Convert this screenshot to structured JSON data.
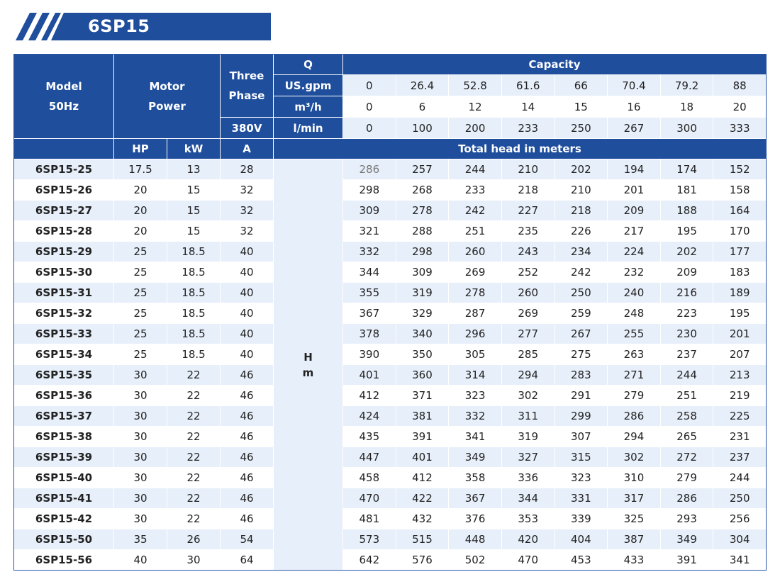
{
  "title": "6SP15",
  "colors": {
    "header_blue": "#1f4e9c",
    "stripe": "#e7effa"
  },
  "header": {
    "model": [
      "Model",
      "50Hz"
    ],
    "motor_power": [
      "Motor",
      "Power"
    ],
    "three_phase": [
      "Three",
      "Phase"
    ],
    "voltage": "380V",
    "q": "Q",
    "capacity": "Capacity",
    "units": [
      "US.gpm",
      "m³/h",
      "l/min"
    ],
    "hp": "HP",
    "kw": "kW",
    "a": "A",
    "total_head": "Total head in meters",
    "hm": [
      "H",
      "m"
    ]
  },
  "capacity": {
    "us_gpm": [
      "0",
      "26.4",
      "52.8",
      "61.6",
      "66",
      "70.4",
      "79.2",
      "88"
    ],
    "m3h": [
      "0",
      "6",
      "12",
      "14",
      "15",
      "16",
      "18",
      "20"
    ],
    "lmin": [
      "0",
      "100",
      "200",
      "233",
      "250",
      "267",
      "300",
      "333"
    ]
  },
  "rows": [
    {
      "model": "6SP15-25",
      "hp": "17.5",
      "kw": "13",
      "a": "28",
      "head": [
        "286",
        "257",
        "244",
        "210",
        "202",
        "194",
        "174",
        "152"
      ]
    },
    {
      "model": "6SP15-26",
      "hp": "20",
      "kw": "15",
      "a": "32",
      "head": [
        "298",
        "268",
        "233",
        "218",
        "210",
        "201",
        "181",
        "158"
      ]
    },
    {
      "model": "6SP15-27",
      "hp": "20",
      "kw": "15",
      "a": "32",
      "head": [
        "309",
        "278",
        "242",
        "227",
        "218",
        "209",
        "188",
        "164"
      ]
    },
    {
      "model": "6SP15-28",
      "hp": "20",
      "kw": "15",
      "a": "32",
      "head": [
        "321",
        "288",
        "251",
        "235",
        "226",
        "217",
        "195",
        "170"
      ]
    },
    {
      "model": "6SP15-29",
      "hp": "25",
      "kw": "18.5",
      "a": "40",
      "head": [
        "332",
        "298",
        "260",
        "243",
        "234",
        "224",
        "202",
        "177"
      ]
    },
    {
      "model": "6SP15-30",
      "hp": "25",
      "kw": "18.5",
      "a": "40",
      "head": [
        "344",
        "309",
        "269",
        "252",
        "242",
        "232",
        "209",
        "183"
      ]
    },
    {
      "model": "6SP15-31",
      "hp": "25",
      "kw": "18.5",
      "a": "40",
      "head": [
        "355",
        "319",
        "278",
        "260",
        "250",
        "240",
        "216",
        "189"
      ]
    },
    {
      "model": "6SP15-32",
      "hp": "25",
      "kw": "18.5",
      "a": "40",
      "head": [
        "367",
        "329",
        "287",
        "269",
        "259",
        "248",
        "223",
        "195"
      ]
    },
    {
      "model": "6SP15-33",
      "hp": "25",
      "kw": "18.5",
      "a": "40",
      "head": [
        "378",
        "340",
        "296",
        "277",
        "267",
        "255",
        "230",
        "201"
      ]
    },
    {
      "model": "6SP15-34",
      "hp": "25",
      "kw": "18.5",
      "a": "40",
      "head": [
        "390",
        "350",
        "305",
        "285",
        "275",
        "263",
        "237",
        "207"
      ]
    },
    {
      "model": "6SP15-35",
      "hp": "30",
      "kw": "22",
      "a": "46",
      "head": [
        "401",
        "360",
        "314",
        "294",
        "283",
        "271",
        "244",
        "213"
      ]
    },
    {
      "model": "6SP15-36",
      "hp": "30",
      "kw": "22",
      "a": "46",
      "head": [
        "412",
        "371",
        "323",
        "302",
        "291",
        "279",
        "251",
        "219"
      ]
    },
    {
      "model": "6SP15-37",
      "hp": "30",
      "kw": "22",
      "a": "46",
      "head": [
        "424",
        "381",
        "332",
        "311",
        "299",
        "286",
        "258",
        "225"
      ]
    },
    {
      "model": "6SP15-38",
      "hp": "30",
      "kw": "22",
      "a": "46",
      "head": [
        "435",
        "391",
        "341",
        "319",
        "307",
        "294",
        "265",
        "231"
      ]
    },
    {
      "model": "6SP15-39",
      "hp": "30",
      "kw": "22",
      "a": "46",
      "head": [
        "447",
        "401",
        "349",
        "327",
        "315",
        "302",
        "272",
        "237"
      ]
    },
    {
      "model": "6SP15-40",
      "hp": "30",
      "kw": "22",
      "a": "46",
      "head": [
        "458",
        "412",
        "358",
        "336",
        "323",
        "310",
        "279",
        "244"
      ]
    },
    {
      "model": "6SP15-41",
      "hp": "30",
      "kw": "22",
      "a": "46",
      "head": [
        "470",
        "422",
        "367",
        "344",
        "331",
        "317",
        "286",
        "250"
      ]
    },
    {
      "model": "6SP15-42",
      "hp": "30",
      "kw": "22",
      "a": "46",
      "head": [
        "481",
        "432",
        "376",
        "353",
        "339",
        "325",
        "293",
        "256"
      ]
    },
    {
      "model": "6SP15-50",
      "hp": "35",
      "kw": "26",
      "a": "54",
      "head": [
        "573",
        "515",
        "448",
        "420",
        "404",
        "387",
        "349",
        "304"
      ]
    },
    {
      "model": "6SP15-56",
      "hp": "40",
      "kw": "30",
      "a": "64",
      "head": [
        "642",
        "576",
        "502",
        "470",
        "453",
        "433",
        "391",
        "341"
      ]
    }
  ]
}
